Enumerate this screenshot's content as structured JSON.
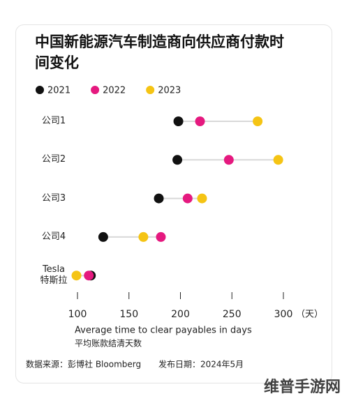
{
  "chart_data": {
    "type": "dot",
    "title": "中国新能源汽车制造商向供应商付款时间变化",
    "categories": [
      "公司1",
      "公司2",
      "公司3",
      "公司4",
      "Tesla\n特斯拉"
    ],
    "series": [
      {
        "name": "2021",
        "color": "#111111",
        "values": [
          198,
          197,
          179,
          125,
          113
        ]
      },
      {
        "name": "2022",
        "color": "#e5197f",
        "values": [
          219,
          247,
          207,
          181,
          111
        ]
      },
      {
        "name": "2023",
        "color": "#f5c414",
        "values": [
          275,
          295,
          221,
          164,
          99
        ]
      }
    ],
    "xlim": [
      95,
      310
    ],
    "xticks": [
      100,
      150,
      200,
      250,
      300
    ],
    "x_unit": "（天）",
    "xlabel": "Average time to clear payables in days",
    "xlabel_cn": "平均账款结清天数",
    "source": "数据来源：彭博社 Bloomberg",
    "date": "发布日期：2024年5月",
    "watermark": "维普手游网"
  }
}
